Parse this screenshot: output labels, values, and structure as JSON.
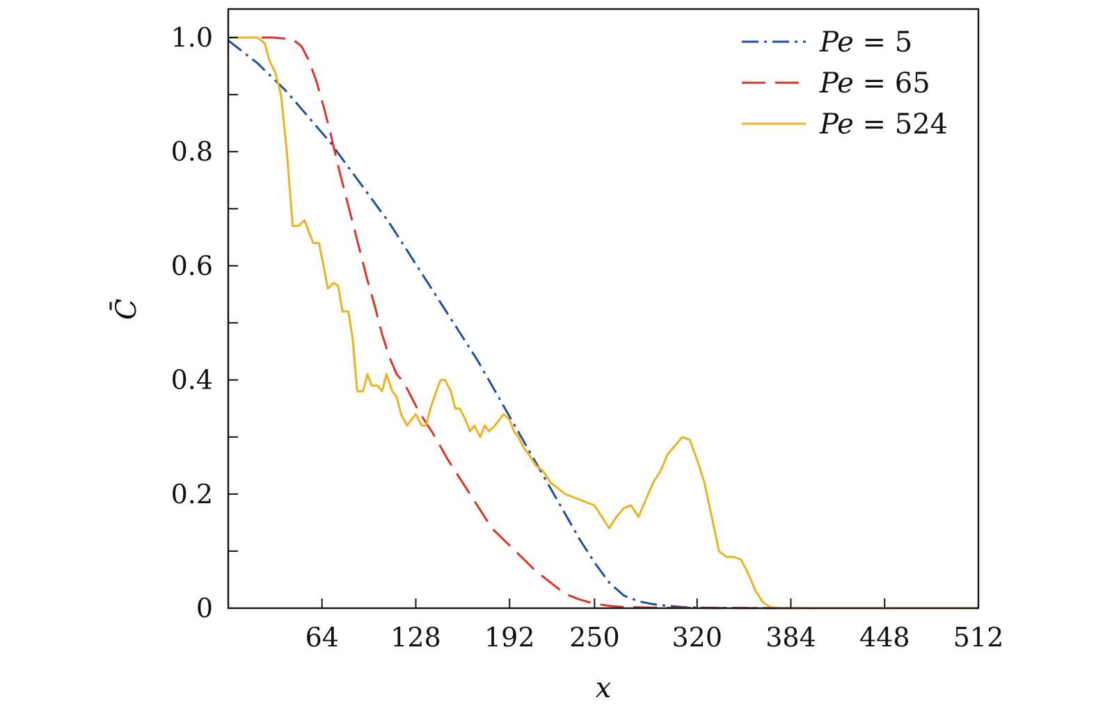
{
  "chart_data": {
    "type": "line",
    "title": "",
    "xlabel": "x",
    "ylabel": "C̄",
    "xlim": [
      0,
      512
    ],
    "ylim": [
      0,
      1.05
    ],
    "x_ticks": [
      64,
      128,
      192,
      250,
      320,
      384,
      448,
      512
    ],
    "x_tick_labels": [
      "64",
      "128",
      "192",
      "250",
      "320",
      "384",
      "448",
      "512"
    ],
    "y_ticks": [
      0,
      0.2,
      0.4,
      0.6,
      0.8,
      1.0
    ],
    "y_tick_labels": [
      "0",
      "0.2",
      "0.4",
      "0.6",
      "0.8",
      "1.0"
    ],
    "y_minor_ticks": [
      0.1,
      0.3,
      0.5,
      0.7,
      0.9
    ],
    "grid": false,
    "legend_position": "top-right",
    "series": [
      {
        "name_prefix": "Pe",
        "name_suffix": "= 5",
        "color": "#1f4e9c",
        "dash": "dashdot",
        "x": [
          0,
          10,
          20,
          30,
          40,
          50,
          60,
          70,
          80,
          90,
          100,
          110,
          120,
          130,
          140,
          150,
          160,
          170,
          180,
          190,
          200,
          210,
          220,
          230,
          240,
          250,
          260,
          270,
          280,
          290,
          300,
          310,
          320,
          340,
          360,
          400,
          512
        ],
        "y": [
          0.995,
          0.975,
          0.955,
          0.93,
          0.905,
          0.875,
          0.845,
          0.815,
          0.78,
          0.745,
          0.71,
          0.675,
          0.635,
          0.595,
          0.555,
          0.515,
          0.475,
          0.435,
          0.39,
          0.345,
          0.3,
          0.255,
          0.21,
          0.165,
          0.12,
          0.08,
          0.045,
          0.022,
          0.012,
          0.007,
          0.004,
          0.002,
          0.001,
          0.0005,
          0.0002,
          0,
          0
        ]
      },
      {
        "name_prefix": "Pe",
        "name_suffix": "= 65",
        "color": "#d93425",
        "dash": "dashed",
        "x": [
          0,
          20,
          30,
          40,
          45,
          50,
          55,
          60,
          65,
          70,
          75,
          80,
          85,
          90,
          95,
          100,
          105,
          110,
          115,
          120,
          125,
          130,
          135,
          140,
          150,
          160,
          170,
          180,
          190,
          200,
          210,
          220,
          230,
          240,
          250,
          260,
          270,
          290,
          320,
          360,
          400,
          512
        ],
        "y": [
          1.0,
          1.0,
          1.0,
          0.998,
          0.995,
          0.985,
          0.96,
          0.925,
          0.88,
          0.83,
          0.775,
          0.725,
          0.675,
          0.625,
          0.575,
          0.53,
          0.48,
          0.44,
          0.41,
          0.395,
          0.37,
          0.345,
          0.325,
          0.305,
          0.26,
          0.22,
          0.18,
          0.14,
          0.115,
          0.09,
          0.065,
          0.045,
          0.025,
          0.015,
          0.008,
          0.004,
          0.002,
          0.001,
          0.0005,
          0.0001,
          0,
          0
        ]
      },
      {
        "name_prefix": "Pe",
        "name_suffix": "= 524",
        "color": "#eeb121",
        "dash": "solid",
        "x": [
          0,
          10,
          20,
          25,
          28,
          32,
          36,
          40,
          44,
          48,
          52,
          55,
          58,
          62,
          65,
          68,
          72,
          75,
          78,
          82,
          85,
          88,
          92,
          95,
          98,
          102,
          105,
          108,
          112,
          115,
          118,
          122,
          125,
          128,
          132,
          135,
          138,
          142,
          145,
          148,
          152,
          155,
          158,
          162,
          165,
          168,
          172,
          175,
          178,
          182,
          185,
          188,
          192,
          195,
          198,
          202,
          205,
          210,
          215,
          220,
          225,
          230,
          235,
          240,
          245,
          250,
          255,
          260,
          265,
          270,
          275,
          280,
          285,
          290,
          295,
          300,
          305,
          310,
          315,
          320,
          325,
          330,
          335,
          340,
          345,
          350,
          355,
          360,
          365,
          370,
          375,
          380,
          384,
          400,
          450,
          512
        ],
        "y": [
          1.0,
          1.0,
          1.0,
          0.99,
          0.96,
          0.94,
          0.9,
          0.8,
          0.67,
          0.67,
          0.68,
          0.66,
          0.64,
          0.64,
          0.6,
          0.56,
          0.57,
          0.565,
          0.52,
          0.52,
          0.47,
          0.38,
          0.38,
          0.41,
          0.39,
          0.39,
          0.38,
          0.41,
          0.38,
          0.37,
          0.34,
          0.32,
          0.33,
          0.34,
          0.32,
          0.32,
          0.35,
          0.38,
          0.4,
          0.4,
          0.38,
          0.35,
          0.35,
          0.33,
          0.31,
          0.32,
          0.3,
          0.32,
          0.31,
          0.32,
          0.33,
          0.34,
          0.33,
          0.31,
          0.3,
          0.28,
          0.27,
          0.25,
          0.24,
          0.22,
          0.21,
          0.2,
          0.195,
          0.19,
          0.185,
          0.18,
          0.16,
          0.14,
          0.16,
          0.175,
          0.18,
          0.16,
          0.19,
          0.22,
          0.24,
          0.27,
          0.285,
          0.3,
          0.295,
          0.26,
          0.22,
          0.16,
          0.1,
          0.09,
          0.09,
          0.085,
          0.06,
          0.03,
          0.01,
          0.002,
          0,
          0,
          0,
          0,
          0,
          0
        ]
      }
    ]
  }
}
